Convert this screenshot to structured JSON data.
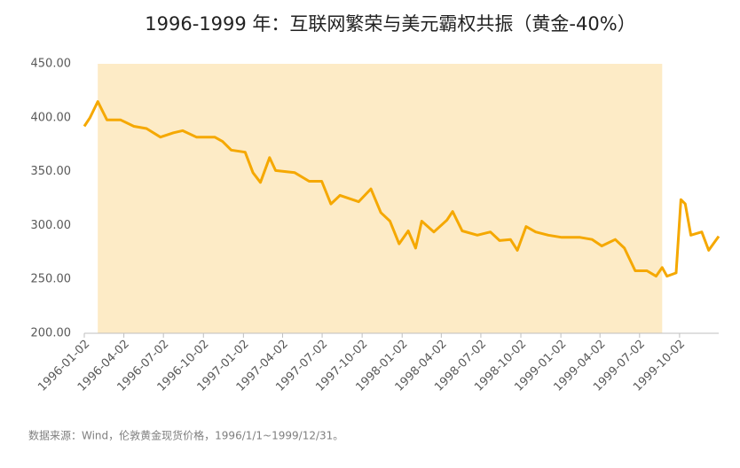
{
  "chart_data": {
    "type": "line",
    "title": "1996-1999 年：互联网繁荣与美元霸权共振（黄金-40%）",
    "note": "数据来源：Wind，伦敦黄金现货价格，1996/1/1~1999/12/31。",
    "x": [
      "1996-01-02",
      "1996-01-15",
      "1996-02-02",
      "1996-02-23",
      "1996-03-25",
      "1996-04-25",
      "1996-05-24",
      "1996-06-25",
      "1996-07-25",
      "1996-08-15",
      "1996-09-16",
      "1996-10-28",
      "1996-11-15",
      "1996-12-05",
      "1997-01-06",
      "1997-01-24",
      "1997-02-10",
      "1997-03-03",
      "1997-03-17",
      "1997-04-30",
      "1997-06-02",
      "1997-07-01",
      "1997-07-22",
      "1997-08-12",
      "1997-09-24",
      "1997-10-22",
      "1997-11-14",
      "1997-12-05",
      "1997-12-26",
      "1998-01-16",
      "1998-02-02",
      "1998-02-16",
      "1998-03-16",
      "1998-04-15",
      "1998-04-28",
      "1998-05-20",
      "1998-06-24",
      "1998-07-24",
      "1998-08-14",
      "1998-09-08",
      "1998-09-24",
      "1998-10-14",
      "1998-11-05",
      "1998-12-04",
      "1999-01-04",
      "1999-02-15",
      "1999-03-15",
      "1999-04-06",
      "1999-05-07",
      "1999-05-28",
      "1999-06-22",
      "1999-07-19",
      "1999-08-09",
      "1999-08-23",
      "1999-09-03",
      "1999-09-24",
      "1999-10-05",
      "1999-10-15",
      "1999-10-28",
      "1999-11-22",
      "1999-12-08",
      "1999-12-31"
    ],
    "series": [
      {
        "color": "#f5a800",
        "values": [
          392,
          400,
          415,
          398,
          398,
          392,
          390,
          382,
          386,
          388,
          382,
          382,
          378,
          370,
          368,
          349,
          340,
          363,
          351,
          349,
          341,
          341,
          320,
          328,
          322,
          334,
          312,
          304,
          283,
          295,
          279,
          304,
          294,
          305,
          313,
          295,
          291,
          294,
          286,
          287,
          277,
          299,
          294,
          291,
          289,
          289,
          287,
          281,
          287,
          279,
          258,
          258,
          253,
          261,
          253,
          256,
          324,
          320,
          291,
          294,
          277,
          290
        ]
      }
    ],
    "highlight_range": [
      "1996-02-02",
      "1999-08-23"
    ],
    "highlight_color": "#fdebc6",
    "xlim": [
      "1996-01-02",
      "1999-12-31"
    ],
    "xticks": [
      "1996-01-02",
      "1996-04-02",
      "1996-07-02",
      "1996-10-02",
      "1997-01-02",
      "1997-04-02",
      "1997-07-02",
      "1997-10-02",
      "1998-01-02",
      "1998-04-02",
      "1998-07-02",
      "1998-10-02",
      "1999-01-02",
      "1999-04-02",
      "1999-07-02",
      "1999-10-02"
    ],
    "ylim": [
      200,
      450
    ],
    "yticks": [
      {
        "value": 200,
        "label": "200.00"
      },
      {
        "value": 250,
        "label": "250.00"
      },
      {
        "value": 300,
        "label": "300.00"
      },
      {
        "value": 350,
        "label": "350.00"
      },
      {
        "value": 400,
        "label": "400.00"
      },
      {
        "value": 450,
        "label": "450.00"
      }
    ],
    "grid": false
  }
}
